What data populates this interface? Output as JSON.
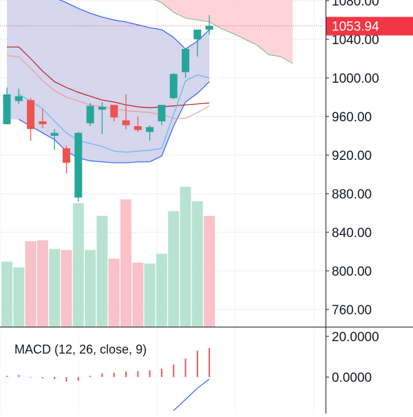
{
  "chart_data": [
    {
      "type": "candlestick",
      "title": "",
      "y_axis_ticks": [
        "1080.00",
        "1040.00",
        "1000.00",
        "960.00",
        "920.00",
        "880.00",
        "840.00",
        "800.00",
        "760.00"
      ],
      "y_axis_tick_values": [
        1080,
        1040,
        1000,
        960,
        920,
        880,
        840,
        800,
        760
      ],
      "ylim": [
        752,
        1085
      ],
      "last_price_label": "1053.94",
      "last_price": 1053.94,
      "colors": {
        "up": "#26a69a",
        "down": "#ef5350",
        "band_fill": "#c8c8e6",
        "band_line": "#2962ff",
        "last_price": "#f23645",
        "cloud_fill": "#ffcdd2"
      },
      "candles": [
        {
          "o": 952,
          "h": 990,
          "l": 954,
          "c": 983
        },
        {
          "o": 976,
          "h": 989,
          "l": 973,
          "c": 981
        },
        {
          "o": 977,
          "h": 979,
          "l": 935,
          "c": 947
        },
        {
          "o": 955,
          "h": 968,
          "l": 948,
          "c": 952
        },
        {
          "o": 940,
          "h": 947,
          "l": 925,
          "c": 943
        },
        {
          "o": 927,
          "h": 930,
          "l": 901,
          "c": 912
        },
        {
          "o": 876,
          "h": 944,
          "l": 872,
          "c": 943
        },
        {
          "o": 953,
          "h": 974,
          "l": 950,
          "c": 971
        },
        {
          "o": 967,
          "h": 975,
          "l": 942,
          "c": 970
        },
        {
          "o": 972,
          "h": 972,
          "l": 955,
          "c": 959
        },
        {
          "o": 956,
          "h": 983,
          "l": 947,
          "c": 951
        },
        {
          "o": 950,
          "h": 960,
          "l": 944,
          "c": 946
        },
        {
          "o": 944,
          "h": 951,
          "l": 935,
          "c": 949
        },
        {
          "o": 955,
          "h": 972,
          "l": 951,
          "c": 972
        },
        {
          "o": 979,
          "h": 1005,
          "l": 978,
          "c": 1004
        },
        {
          "o": 1006,
          "h": 1030,
          "l": 1000,
          "c": 1030
        },
        {
          "o": 1040,
          "h": 1050,
          "l": 1022,
          "c": 1050
        },
        {
          "o": 1050,
          "h": 1065,
          "l": 1045,
          "c": 1054
        }
      ],
      "bollinger": {
        "upper": [
          1085,
          1086,
          1085,
          1084,
          1083,
          1078,
          1072,
          1067,
          1063,
          1060,
          1058,
          1055,
          1052,
          1050,
          1042,
          1030,
          1038,
          1050
        ],
        "middle": [
          null,
          997,
          990,
          983,
          975,
          972,
          970,
          968,
          966,
          964,
          963,
          964,
          962,
          960,
          968,
          985,
          992,
          1000
        ],
        "lower": [
          null,
          957,
          950,
          943,
          936,
          924,
          917,
          914,
          913,
          912,
          912,
          913,
          913,
          919,
          950,
          975,
          984,
          996
        ]
      },
      "moving_averages": [
        {
          "color": "#b71c1c",
          "values": [
            1032,
            1032,
            1020,
            1007,
            996,
            990,
            985,
            981,
            977,
            975,
            972,
            970,
            969,
            970,
            971,
            972,
            973,
            974
          ]
        },
        {
          "color": "#ef9a9a",
          "values": [
            1023,
            1022,
            1010,
            997,
            987,
            980,
            976,
            972,
            970,
            968,
            966,
            965,
            964,
            962,
            958,
            958,
            964,
            971
          ]
        },
        {
          "color": "#64b5f6",
          "values": [
            null,
            983,
            976,
            968,
            955,
            943,
            935,
            932,
            929,
            924,
            923,
            924,
            925,
            927,
            962,
            997,
            1003,
            1000
          ]
        }
      ],
      "cloud": {
        "upper": [
          1083,
          1083,
          1083,
          1083,
          1083,
          1083,
          1083,
          1083,
          1083,
          1083,
          1083,
          1083,
          1083,
          1083,
          1083,
          1083,
          1083,
          1083,
          1083,
          1083,
          1083,
          1083,
          1083,
          1083,
          1083
        ],
        "lower": [
          null,
          null,
          null,
          null,
          null,
          null,
          null,
          null,
          null,
          null,
          null,
          null,
          1083,
          1078,
          1068,
          1062,
          1060,
          1058,
          1051,
          1046,
          1040,
          1034,
          1024,
          1022,
          1015
        ]
      },
      "volume": {
        "values": [
          67,
          61,
          88,
          89,
          80,
          79,
          127,
          79,
          114,
          70,
          131,
          66,
          65,
          75,
          119,
          144,
          129,
          114
        ],
        "up": [
          true,
          true,
          false,
          false,
          true,
          false,
          true,
          true,
          true,
          false,
          false,
          false,
          true,
          true,
          true,
          true,
          true,
          false
        ],
        "colors": {
          "up": "#b8e3d2",
          "down": "#f8c2c8"
        }
      }
    },
    {
      "type": "bar",
      "title": "MACD (12, 26, close, 9)",
      "y_axis_ticks": [
        "20.0000",
        "0.0000"
      ],
      "y_axis_tick_values": [
        20,
        0
      ],
      "histogram": [
        0.6,
        1.0,
        -0.3,
        -0.6,
        -1.1,
        -2.3,
        -1.8,
        0.6,
        1.8,
        2.2,
        2.7,
        2.9,
        3.4,
        4.1,
        6.1,
        9.1,
        12.9,
        14.3
      ],
      "signal_line": [
        null,
        null,
        null,
        null,
        null,
        null,
        null,
        null,
        null,
        null,
        null,
        null,
        null,
        null,
        -16.5,
        -11,
        -5.5,
        -1
      ]
    }
  ]
}
